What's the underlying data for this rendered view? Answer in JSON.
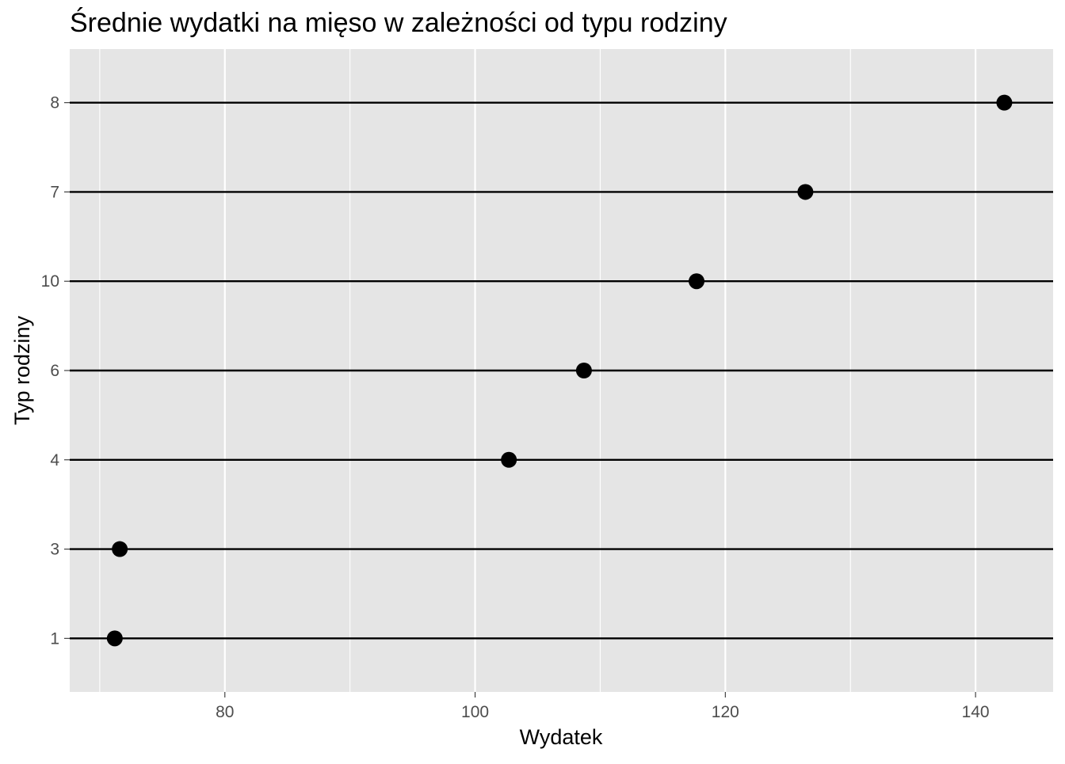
{
  "chart_data": {
    "type": "scatter",
    "title": "Średnie wydatki na mięso w zależności od typu rodziny",
    "xlabel": "Wydatek",
    "ylabel": "Typ rodziny",
    "xlim": [
      67.6,
      146.2
    ],
    "x_ticks": [
      80,
      100,
      120,
      140
    ],
    "x_tick_labels": [
      "80",
      "100",
      "120",
      "140"
    ],
    "x_minor_ticks": [
      70,
      90,
      110,
      130
    ],
    "categories": [
      "1",
      "3",
      "4",
      "6",
      "10",
      "7",
      "8"
    ],
    "values": [
      71.2,
      71.6,
      102.7,
      108.7,
      117.7,
      126.4,
      142.3
    ],
    "grid": true,
    "legend": "none",
    "colors": {
      "panel_background": "#e5e5e5",
      "grid_line": "#ffffff",
      "category_line": "#000000",
      "point": "#000000",
      "tick_label": "#4d4d4d"
    }
  }
}
